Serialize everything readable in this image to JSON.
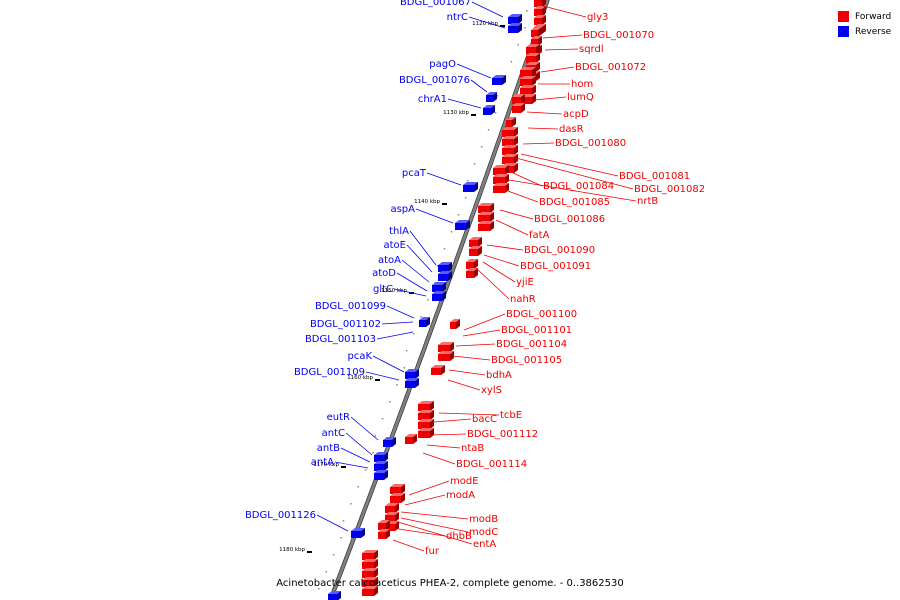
{
  "caption": "Acinetobacter calcoaceticus PHEA-2, complete genome. - 0..3862530",
  "legend": [
    {
      "label": "Forward",
      "color": "#ee0000"
    },
    {
      "label": "Reverse",
      "color": "#0000ee"
    }
  ],
  "colors": {
    "forward": "#ee0000",
    "reverse": "#0000ee",
    "backbone": "#808080"
  },
  "ticks": [
    "1120 kbp",
    "1130 kbp",
    "1140 kbp",
    "1150 kbp",
    "1160 kbp",
    "1170 kbp",
    "1180 kbp"
  ],
  "reverse_genes": [
    "BDGL_001067",
    "ntrC",
    "pagO",
    "BDGL_001076",
    "chrA1",
    "pcaT",
    "aspA",
    "thlA",
    "atoE",
    "atoA",
    "atoD",
    "gltC",
    "BDGL_001099",
    "BDGL_001102",
    "BDGL_001103",
    "pcaK",
    "BDGL_001109",
    "eutR",
    "antC",
    "antB",
    "antA",
    "BDGL_001126"
  ],
  "forward_genes": [
    "gly3",
    "BDGL_001070",
    "sqrdl",
    "BDGL_001072",
    "hom",
    "lumQ",
    "acpD",
    "dasR",
    "BDGL_001080",
    "BDGL_001081",
    "BDGL_001082",
    "BDGL_001084",
    "nrtB",
    "BDGL_001085",
    "BDGL_001086",
    "fatA",
    "BDGL_001090",
    "BDGL_001091",
    "yjiE",
    "nahR",
    "BDGL_001100",
    "BDGL_001101",
    "BDGL_001104",
    "BDGL_001105",
    "bdhA",
    "xylS",
    "tcbE",
    "bacC",
    "BDGL_001112",
    "ntaB",
    "BDGL_001114",
    "modE",
    "modA",
    "modB",
    "modC",
    "entA",
    "dhbB",
    "fur"
  ]
}
